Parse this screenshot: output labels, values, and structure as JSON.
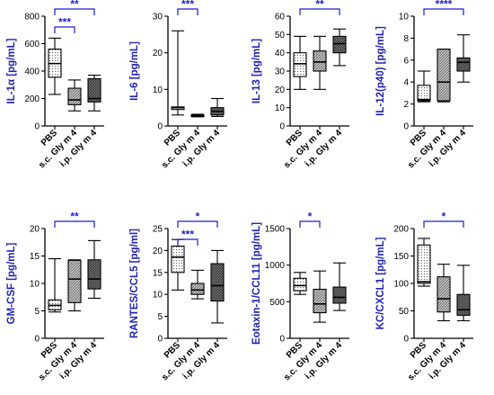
{
  "colors": {
    "ylabel": "#2323b4",
    "sig": "#1c1ccf",
    "axis": "#000000"
  },
  "xtick_labels": [
    "PBS",
    "s.c. Gly m 4",
    "i.p. Gly m 4"
  ],
  "chart_data": [
    {
      "type": "boxplot",
      "ylabel": "IL-1α [pg/mL]",
      "ylim": [
        0,
        800
      ],
      "yticks": [
        0,
        200,
        400,
        600,
        800
      ],
      "categories": [
        "PBS",
        "s.c. Gly m 4",
        "i.p. Gly m 4"
      ],
      "boxes": [
        {
          "min": 230,
          "q1": 355,
          "median": 455,
          "q3": 560,
          "max": 640,
          "fill": "dots"
        },
        {
          "min": 110,
          "q1": 155,
          "median": 190,
          "q3": 275,
          "max": 335,
          "fill": "hatch"
        },
        {
          "min": 110,
          "q1": 175,
          "median": 200,
          "q3": 345,
          "max": 370,
          "fill": "dense"
        }
      ],
      "sig": [
        {
          "from": 0,
          "to": 2,
          "label": "**"
        },
        {
          "from": 0,
          "to": 1,
          "label": "***"
        }
      ]
    },
    {
      "type": "boxplot",
      "ylabel": "IL-6 [pg/mL]",
      "ylim": [
        0,
        30
      ],
      "yticks": [
        0,
        10,
        20,
        30
      ],
      "categories": [
        "PBS",
        "s.c. Gly m 4",
        "i.p. Gly m 4"
      ],
      "boxes": [
        {
          "min": 3,
          "q1": 4.5,
          "median": 5,
          "q3": 5.2,
          "max": 26,
          "fill": "dots"
        },
        {
          "min": 2.5,
          "q1": 2.6,
          "median": 2.8,
          "q3": 3,
          "max": 3.2,
          "fill": "hatch"
        },
        {
          "min": 2.6,
          "q1": 3,
          "median": 4,
          "q3": 5,
          "max": 7.5,
          "fill": "dense"
        }
      ],
      "sig": [
        {
          "from": 0,
          "to": 1,
          "label": "***"
        }
      ]
    },
    {
      "type": "boxplot",
      "ylabel": "IL-13 [pg/mL]",
      "ylim": [
        0,
        60
      ],
      "yticks": [
        0,
        10,
        20,
        30,
        40,
        50,
        60
      ],
      "categories": [
        "PBS",
        "s.c. Gly m 4",
        "i.p. Gly m 4"
      ],
      "boxes": [
        {
          "min": 20,
          "q1": 27,
          "median": 34,
          "q3": 40,
          "max": 49,
          "fill": "dots"
        },
        {
          "min": 20,
          "q1": 30,
          "median": 35,
          "q3": 41,
          "max": 49,
          "fill": "hatch"
        },
        {
          "min": 33,
          "q1": 40,
          "median": 45,
          "q3": 49,
          "max": 53,
          "fill": "dense"
        }
      ],
      "sig": [
        {
          "from": 0,
          "to": 2,
          "label": "**"
        }
      ]
    },
    {
      "type": "boxplot",
      "ylabel": "IL-12(p40) [pg/mL]",
      "ylim": [
        0,
        10
      ],
      "yticks": [
        0,
        2,
        4,
        6,
        8,
        10
      ],
      "categories": [
        "PBS",
        "s.c. Gly m 4",
        "i.p. Gly m 4"
      ],
      "boxes": [
        {
          "min": 2.2,
          "q1": 2.3,
          "median": 2.4,
          "q3": 3.7,
          "max": 5,
          "fill": "dots"
        },
        {
          "min": 2.2,
          "q1": 2.3,
          "median": 4,
          "q3": 7,
          "max": 7,
          "fill": "hatch"
        },
        {
          "min": 4,
          "q1": 5,
          "median": 5.8,
          "q3": 6.2,
          "max": 8.3,
          "fill": "dense"
        }
      ],
      "sig": [
        {
          "from": 0,
          "to": 2,
          "label": "****"
        }
      ]
    },
    {
      "type": "boxplot",
      "ylabel": "GM-CSF [pg/mL]",
      "ylim": [
        0,
        20
      ],
      "yticks": [
        0,
        5,
        10,
        15,
        20
      ],
      "categories": [
        "PBS",
        "s.c. Gly m 4",
        "i.p. Gly m 4"
      ],
      "boxes": [
        {
          "min": 4.8,
          "q1": 5.2,
          "median": 6,
          "q3": 7,
          "max": 14.5,
          "fill": "dots"
        },
        {
          "min": 5,
          "q1": 6.5,
          "median": 10.8,
          "q3": 14.2,
          "max": 14.3,
          "fill": "hatch"
        },
        {
          "min": 7.3,
          "q1": 9,
          "median": 10.8,
          "q3": 14.3,
          "max": 17.8,
          "fill": "dense"
        }
      ],
      "sig": [
        {
          "from": 0,
          "to": 2,
          "label": "**"
        }
      ]
    },
    {
      "type": "boxplot",
      "ylabel": "RANTES/CCL5 [pg/ml]",
      "ylim": [
        0,
        25
      ],
      "yticks": [
        0,
        5,
        10,
        15,
        20,
        25
      ],
      "categories": [
        "PBS",
        "s.c. Gly m 4",
        "i.p. Gly m 4"
      ],
      "boxes": [
        {
          "min": 11,
          "q1": 15,
          "median": 18.5,
          "q3": 21,
          "max": 22.5,
          "fill": "dots"
        },
        {
          "min": 9,
          "q1": 10,
          "median": 11,
          "q3": 12.5,
          "max": 15.5,
          "fill": "hatch"
        },
        {
          "min": 3.5,
          "q1": 8.5,
          "median": 12,
          "q3": 17,
          "max": 20,
          "fill": "dense"
        }
      ],
      "sig": [
        {
          "from": 0,
          "to": 2,
          "label": "*"
        },
        {
          "from": 0,
          "to": 1,
          "label": "***"
        }
      ]
    },
    {
      "type": "boxplot",
      "ylabel": "Eotaxin-1/CCL11 [pg/mL]",
      "ylim": [
        0,
        1500
      ],
      "yticks": [
        0,
        500,
        1000,
        1500
      ],
      "categories": [
        "PBS",
        "s.c. Gly m 4",
        "i.p. Gly m 4"
      ],
      "boxes": [
        {
          "min": 600,
          "q1": 650,
          "median": 720,
          "q3": 820,
          "max": 900,
          "fill": "dots"
        },
        {
          "min": 220,
          "q1": 350,
          "median": 470,
          "q3": 670,
          "max": 920,
          "fill": "hatch"
        },
        {
          "min": 380,
          "q1": 480,
          "median": 560,
          "q3": 700,
          "max": 1030,
          "fill": "dense"
        }
      ],
      "sig": [
        {
          "from": 0,
          "to": 1,
          "label": "*"
        }
      ]
    },
    {
      "type": "boxplot",
      "ylabel": "KC/CXCL1 [pg/mL]",
      "ylim": [
        0,
        200
      ],
      "yticks": [
        0,
        50,
        100,
        150,
        200
      ],
      "categories": [
        "PBS",
        "s.c. Gly m 4",
        "i.p. Gly m 4"
      ],
      "boxes": [
        {
          "min": 95,
          "q1": 100,
          "median": 103,
          "q3": 170,
          "max": 182,
          "fill": "dots"
        },
        {
          "min": 32,
          "q1": 48,
          "median": 72,
          "q3": 112,
          "max": 135,
          "fill": "hatch"
        },
        {
          "min": 32,
          "q1": 42,
          "median": 52,
          "q3": 80,
          "max": 133,
          "fill": "dense"
        }
      ],
      "sig": [
        {
          "from": 0,
          "to": 2,
          "label": "*"
        }
      ]
    }
  ]
}
